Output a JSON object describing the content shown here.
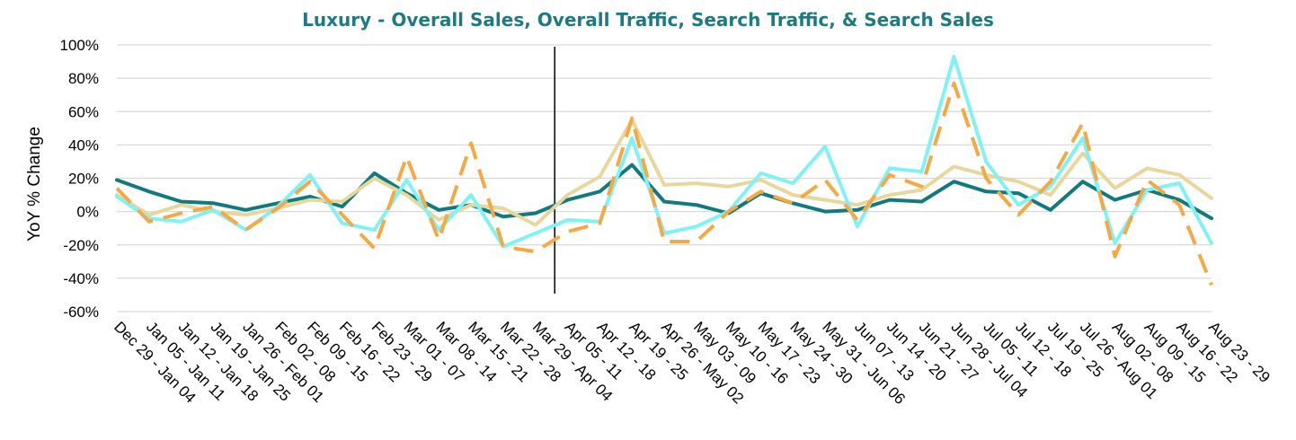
{
  "chart_data": {
    "type": "line",
    "title": "Luxury - Overall Sales, Overall Traffic, Search Traffic, & Search Sales",
    "xlabel": "",
    "ylabel": "YoY % Change",
    "ylim": [
      -60,
      100
    ],
    "yticks": [
      -60,
      -40,
      -20,
      0,
      20,
      40,
      60,
      80,
      100
    ],
    "ytick_labels": [
      "-60%",
      "-40%",
      "-20%",
      "0%",
      "20%",
      "40%",
      "60%",
      "80%",
      "100%"
    ],
    "grid": true,
    "legend": "none",
    "categories": [
      "Dec 29 - Jan 04",
      "Jan 05 - Jan 11",
      "Jan 12 - Jan 18",
      "Jan 19 - Jan 25",
      "Jan 26 - Feb 01",
      "Feb 02 - 08",
      "Feb 09 - 15",
      "Feb 16 - 22",
      "Feb 23 - 29",
      "Mar 01 - 07",
      "Mar 08 - 14",
      "Mar 15 - 21",
      "Mar 22 - 28",
      "Mar 29 - Apr 04",
      "Apr 05 - 11",
      "Apr 12 - 18",
      "Apr 19 - 25",
      "Apr 26 - May 02",
      "May 03 - 09",
      "May 10 - 16",
      "May 17 - 23",
      "May 24 - 30",
      "May 31 - Jun 06",
      "Jun 07 - 13",
      "Jun 14 - 20",
      "Jun 21 - 27",
      "Jun 28 - Jul 04",
      "Jul 05 - 11",
      "Jul 12 - 18",
      "Jul 19 - 25",
      "Jul 26 - Aug 01",
      "Aug 02 - 08",
      "Aug 09 - 15",
      "Aug 16 - 22",
      "Aug 23 - 29"
    ],
    "vertical_marker_category": "Apr 05 - 11",
    "series": [
      {
        "color": "#117a7d",
        "dash": "solid",
        "values": [
          19,
          12,
          6,
          5,
          1,
          5,
          9,
          3,
          23,
          11,
          1,
          4,
          -3,
          -1,
          7,
          12,
          28,
          6,
          4,
          -1,
          11,
          5,
          0,
          1,
          7,
          6,
          18,
          12,
          11,
          1,
          18,
          7,
          13,
          7,
          -4
        ]
      },
      {
        "color": "#e8d79c",
        "dash": "solid",
        "values": [
          10,
          -2,
          4,
          0,
          -2,
          2,
          7,
          6,
          20,
          10,
          -5,
          4,
          2,
          -8,
          10,
          21,
          55,
          16,
          17,
          15,
          19,
          10,
          7,
          4,
          10,
          13,
          27,
          22,
          18,
          10,
          35,
          14,
          26,
          22,
          8
        ]
      },
      {
        "color": "#7ff2f5",
        "dash": "solid",
        "values": [
          9,
          -4,
          -6,
          1,
          -11,
          3,
          22,
          -7,
          -11,
          19,
          -11,
          10,
          -21,
          -13,
          -5,
          -6,
          44,
          -13,
          -9,
          0,
          23,
          17,
          39,
          -9,
          26,
          24,
          93,
          30,
          4,
          15,
          44,
          -19,
          13,
          17,
          -19
        ]
      },
      {
        "color": "#f7a843",
        "dash": "dashed",
        "values": [
          14,
          -6,
          -1,
          3,
          -11,
          2,
          18,
          -2,
          -22,
          33,
          -17,
          41,
          -21,
          -24,
          -12,
          -7,
          56,
          -18,
          -18,
          0,
          12,
          5,
          19,
          -5,
          22,
          15,
          77,
          20,
          -2,
          18,
          53,
          -27,
          19,
          4,
          -44
        ]
      }
    ]
  }
}
